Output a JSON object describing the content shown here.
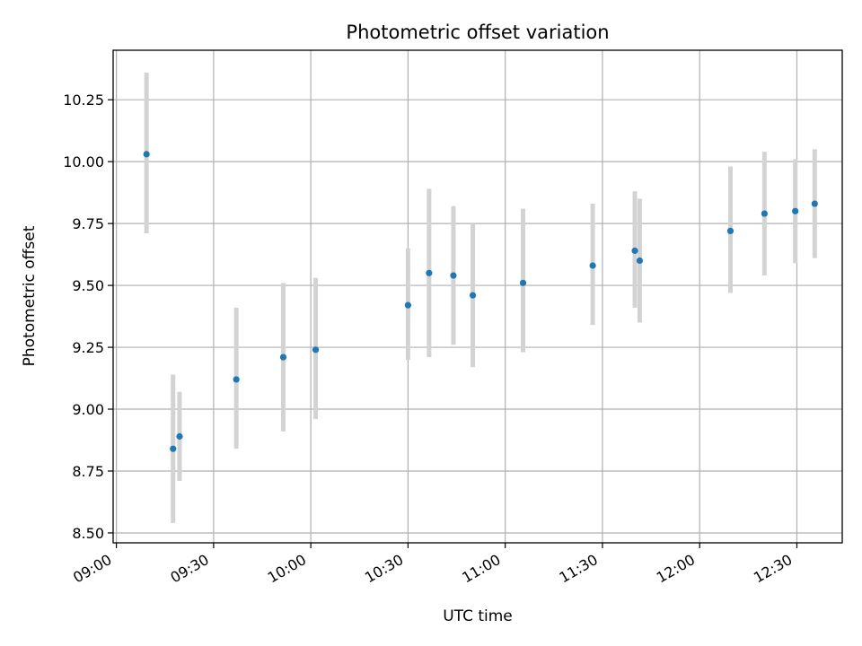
{
  "chart_data": {
    "type": "scatter",
    "title": "Photometric offset variation",
    "xlabel": "UTC time",
    "ylabel": "Photometric offset",
    "grid": true,
    "x_unit": "minutes after 09:00 UTC",
    "xlim": [
      -1,
      224
    ],
    "ylim": [
      8.46,
      10.45
    ],
    "xticks": [
      {
        "value": 0,
        "label": "09:00"
      },
      {
        "value": 30,
        "label": "09:30"
      },
      {
        "value": 60,
        "label": "10:00"
      },
      {
        "value": 90,
        "label": "10:30"
      },
      {
        "value": 120,
        "label": "11:00"
      },
      {
        "value": 150,
        "label": "11:30"
      },
      {
        "value": 180,
        "label": "12:00"
      },
      {
        "value": 210,
        "label": "12:30"
      }
    ],
    "yticks": [
      {
        "value": 8.5,
        "label": "8.50"
      },
      {
        "value": 8.75,
        "label": "8.75"
      },
      {
        "value": 9.0,
        "label": "9.00"
      },
      {
        "value": 9.25,
        "label": "9.25"
      },
      {
        "value": 9.5,
        "label": "9.50"
      },
      {
        "value": 9.75,
        "label": "9.75"
      },
      {
        "value": 10.0,
        "label": "10.00"
      },
      {
        "value": 10.25,
        "label": "10.25"
      }
    ],
    "series": [
      {
        "name": "Photometric offset",
        "marker_color": "#1f77b4",
        "errorbar_color": "#d3d3d3",
        "points": [
          {
            "x": 9.3,
            "y": 10.03,
            "yerr_low": 9.71,
            "yerr_high": 10.36
          },
          {
            "x": 17.5,
            "y": 8.84,
            "yerr_low": 8.54,
            "yerr_high": 9.14
          },
          {
            "x": 19.5,
            "y": 8.89,
            "yerr_low": 8.71,
            "yerr_high": 9.07
          },
          {
            "x": 37.0,
            "y": 9.12,
            "yerr_low": 8.84,
            "yerr_high": 9.41
          },
          {
            "x": 51.5,
            "y": 9.21,
            "yerr_low": 8.91,
            "yerr_high": 9.51
          },
          {
            "x": 61.5,
            "y": 9.24,
            "yerr_low": 8.96,
            "yerr_high": 9.53
          },
          {
            "x": 90.0,
            "y": 9.42,
            "yerr_low": 9.2,
            "yerr_high": 9.65
          },
          {
            "x": 96.5,
            "y": 9.55,
            "yerr_low": 9.21,
            "yerr_high": 9.89
          },
          {
            "x": 104.0,
            "y": 9.54,
            "yerr_low": 9.26,
            "yerr_high": 9.82
          },
          {
            "x": 110.0,
            "y": 9.46,
            "yerr_low": 9.17,
            "yerr_high": 9.75
          },
          {
            "x": 125.5,
            "y": 9.51,
            "yerr_low": 9.23,
            "yerr_high": 9.81
          },
          {
            "x": 147.0,
            "y": 9.58,
            "yerr_low": 9.34,
            "yerr_high": 9.83
          },
          {
            "x": 160.0,
            "y": 9.64,
            "yerr_low": 9.41,
            "yerr_high": 9.88
          },
          {
            "x": 161.5,
            "y": 9.6,
            "yerr_low": 9.35,
            "yerr_high": 9.85
          },
          {
            "x": 189.5,
            "y": 9.72,
            "yerr_low": 9.47,
            "yerr_high": 9.98
          },
          {
            "x": 200.0,
            "y": 9.79,
            "yerr_low": 9.54,
            "yerr_high": 10.04
          },
          {
            "x": 209.5,
            "y": 9.8,
            "yerr_low": 9.59,
            "yerr_high": 10.01
          },
          {
            "x": 215.5,
            "y": 9.83,
            "yerr_low": 9.61,
            "yerr_high": 10.05
          }
        ]
      }
    ]
  }
}
